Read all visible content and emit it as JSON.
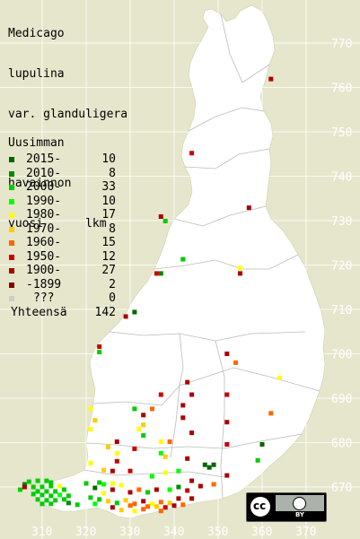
{
  "title_lines": [
    "Medicago",
    "lupulina",
    "var. glanduligera"
  ],
  "legend_heading": [
    "Uusimman",
    "havainnon",
    "vuosi      lkm"
  ],
  "legend": [
    {
      "label": "2015-",
      "count": "10",
      "color": "#006600"
    },
    {
      "label": "2010-",
      "count": "8",
      "color": "#008800"
    },
    {
      "label": "2000-",
      "count": "33",
      "color": "#00cc00"
    },
    {
      "label": "1990-",
      "count": "10",
      "color": "#00ff00"
    },
    {
      "label": "1980-",
      "count": "17",
      "color": "#ffff00"
    },
    {
      "label": "1970-",
      "count": "8",
      "color": "#ffcc00"
    },
    {
      "label": "1960-",
      "count": "15",
      "color": "#ff6600"
    },
    {
      "label": "1950-",
      "count": "12",
      "color": "#cc0000"
    },
    {
      "label": "1900-",
      "count": "27",
      "color": "#aa0000"
    },
    {
      "label": "-1899",
      "count": "2",
      "color": "#880000"
    },
    {
      "label": "???",
      "count": "0",
      "color": "#cccccc"
    }
  ],
  "total": {
    "label": "Yhteensä",
    "count": "142"
  },
  "grid": {
    "y_labels": [
      "770",
      "760",
      "750",
      "740",
      "730",
      "720",
      "710",
      "700",
      "690",
      "680",
      "670"
    ],
    "x_labels": [
      "310",
      "320",
      "330",
      "340",
      "350",
      "360",
      "370"
    ]
  },
  "colors": {
    "background": "#e6e6cc",
    "land": "#ffffff",
    "grid": "#ffffff",
    "grid_label": "#ffffff",
    "border": "#bbbbbb"
  },
  "license": {
    "cc": "cc",
    "by": "BY"
  },
  "observations": [
    {
      "e": 362,
      "n": 761.9,
      "c": "#aa0000"
    },
    {
      "e": 344,
      "n": 745.2,
      "c": "#cc0000"
    },
    {
      "e": 357,
      "n": 732.9,
      "c": "#aa0000"
    },
    {
      "e": 337,
      "n": 730.9,
      "c": "#aa0000"
    },
    {
      "e": 338,
      "n": 729.9,
      "c": "#00cc00"
    },
    {
      "e": 342,
      "n": 721.3,
      "c": "#00cc00"
    },
    {
      "e": 355,
      "n": 719.3,
      "c": "#ffff00"
    },
    {
      "e": 355,
      "n": 718.1,
      "c": "#aa0000"
    },
    {
      "e": 337,
      "n": 718.1,
      "c": "#008800"
    },
    {
      "e": 336,
      "n": 718.1,
      "c": "#cc0000"
    },
    {
      "e": 331,
      "n": 709.4,
      "c": "#006600"
    },
    {
      "e": 329,
      "n": 708.4,
      "c": "#aa0000"
    },
    {
      "e": 323,
      "n": 701.6,
      "c": "#cc0000"
    },
    {
      "e": 323,
      "n": 700.4,
      "c": "#00cc00"
    },
    {
      "e": 352,
      "n": 700.0,
      "c": "#aa0000"
    },
    {
      "e": 354,
      "n": 698.0,
      "c": "#ff6600"
    },
    {
      "e": 343,
      "n": 693.6,
      "c": "#aa0000"
    },
    {
      "e": 364,
      "n": 694.6,
      "c": "#ffff00"
    },
    {
      "e": 337,
      "n": 690.8,
      "c": "#cc0000"
    },
    {
      "e": 344,
      "n": 690.8,
      "c": "#aa0000"
    },
    {
      "e": 352,
      "n": 690.8,
      "c": "#cc0000"
    },
    {
      "e": 342,
      "n": 688.4,
      "c": "#aa0000"
    },
    {
      "e": 335,
      "n": 687.6,
      "c": "#ff6600"
    },
    {
      "e": 331,
      "n": 687.6,
      "c": "#00cc00"
    },
    {
      "e": 321,
      "n": 687.6,
      "c": "#ffff00"
    },
    {
      "e": 333,
      "n": 686.2,
      "c": "#aa0000"
    },
    {
      "e": 342,
      "n": 685.6,
      "c": "#aa0000"
    },
    {
      "e": 362,
      "n": 686.6,
      "c": "#ff6600"
    },
    {
      "e": 322,
      "n": 685.0,
      "c": "#ffcc00"
    },
    {
      "e": 352,
      "n": 684.6,
      "c": "#aa0000"
    },
    {
      "e": 333,
      "n": 684.0,
      "c": "#ffcc00"
    },
    {
      "e": 321,
      "n": 683.0,
      "c": "#ffff00"
    },
    {
      "e": 332,
      "n": 683.0,
      "c": "#ffff00"
    },
    {
      "e": 344,
      "n": 682.2,
      "c": "#aa0000"
    },
    {
      "e": 333,
      "n": 681.6,
      "c": "#00cc00"
    },
    {
      "e": 327,
      "n": 680.2,
      "c": "#aa0000"
    },
    {
      "e": 337,
      "n": 680.2,
      "c": "#ffff00"
    },
    {
      "e": 339,
      "n": 680.2,
      "c": "#ff6600"
    },
    {
      "e": 352,
      "n": 679.6,
      "c": "#cc0000"
    },
    {
      "e": 360,
      "n": 679.6,
      "c": "#006600"
    },
    {
      "e": 325,
      "n": 679.0,
      "c": "#ffcc00"
    },
    {
      "e": 331,
      "n": 678.6,
      "c": "#cc0000"
    },
    {
      "e": 327,
      "n": 677.6,
      "c": "#ffff00"
    },
    {
      "e": 337,
      "n": 677.6,
      "c": "#00ff00"
    },
    {
      "e": 338,
      "n": 676.8,
      "c": "#ffcc00"
    },
    {
      "e": 343,
      "n": 676.4,
      "c": "#aa0000"
    },
    {
      "e": 321,
      "n": 675.4,
      "c": "#ffff00"
    },
    {
      "e": 327,
      "n": 675.8,
      "c": "#cc0000"
    },
    {
      "e": 359,
      "n": 676.0,
      "c": "#00cc00"
    },
    {
      "e": 347,
      "n": 675.0,
      "c": "#006600"
    },
    {
      "e": 349,
      "n": 675.0,
      "c": "#006600"
    },
    {
      "e": 348,
      "n": 674.4,
      "c": "#006600"
    },
    {
      "e": 341,
      "n": 673.6,
      "c": "#00ff00"
    },
    {
      "e": 324,
      "n": 673.8,
      "c": "#ffcc00"
    },
    {
      "e": 326,
      "n": 673.6,
      "c": "#aa0000"
    },
    {
      "e": 330,
      "n": 673.6,
      "c": "#cc0000"
    },
    {
      "e": 338,
      "n": 673.2,
      "c": "#ffff00"
    },
    {
      "e": 335,
      "n": 672.4,
      "c": "#00ff00"
    },
    {
      "e": 352,
      "n": 672.6,
      "c": "#aa0000"
    },
    {
      "e": 344,
      "n": 671.4,
      "c": "#aa0000"
    },
    {
      "e": 323,
      "n": 671.0,
      "c": "#00cc00"
    },
    {
      "e": 324,
      "n": 670.6,
      "c": "#00ff00"
    },
    {
      "e": 326,
      "n": 670.8,
      "c": "#ffff00"
    },
    {
      "e": 320,
      "n": 670.8,
      "c": "#00cc00"
    },
    {
      "e": 306,
      "n": 670.6,
      "c": "#008800"
    },
    {
      "e": 307,
      "n": 671.2,
      "c": "#00cc00"
    },
    {
      "e": 309,
      "n": 671.4,
      "c": "#00cc00"
    },
    {
      "e": 311,
      "n": 671.4,
      "c": "#00cc00"
    },
    {
      "e": 312,
      "n": 671.0,
      "c": "#00cc00"
    },
    {
      "e": 306,
      "n": 670.0,
      "c": "#aa0000"
    },
    {
      "e": 308,
      "n": 670.0,
      "c": "#00cc00"
    },
    {
      "e": 310,
      "n": 670.0,
      "c": "#00cc00"
    },
    {
      "e": 312,
      "n": 670.2,
      "c": "#00cc00"
    },
    {
      "e": 314,
      "n": 670.2,
      "c": "#ffff00"
    },
    {
      "e": 305,
      "n": 669.4,
      "c": "#00cc00"
    },
    {
      "e": 309,
      "n": 669.0,
      "c": "#00cc00"
    },
    {
      "e": 311,
      "n": 669.0,
      "c": "#00cc00"
    },
    {
      "e": 313,
      "n": 669.0,
      "c": "#00cc00"
    },
    {
      "e": 315,
      "n": 669.4,
      "c": "#00cc00"
    },
    {
      "e": 308,
      "n": 668.4,
      "c": "#00cc00"
    },
    {
      "e": 310,
      "n": 668.2,
      "c": "#00cc00"
    },
    {
      "e": 312,
      "n": 668.0,
      "c": "#00cc00"
    },
    {
      "e": 314,
      "n": 668.2,
      "c": "#00ff00"
    },
    {
      "e": 316,
      "n": 668.0,
      "c": "#00cc00"
    },
    {
      "e": 309,
      "n": 667.2,
      "c": "#00cc00"
    },
    {
      "e": 311,
      "n": 667.0,
      "c": "#00cc00"
    },
    {
      "e": 313,
      "n": 667.0,
      "c": "#00cc00"
    },
    {
      "e": 315,
      "n": 667.2,
      "c": "#00cc00"
    },
    {
      "e": 310,
      "n": 666.2,
      "c": "#00cc00"
    },
    {
      "e": 312,
      "n": 666.2,
      "c": "#00cc00"
    },
    {
      "e": 316,
      "n": 666.4,
      "c": "#008800"
    },
    {
      "e": 318,
      "n": 666.0,
      "c": "#00cc00"
    },
    {
      "e": 322,
      "n": 669.8,
      "c": "#006600"
    },
    {
      "e": 324,
      "n": 668.6,
      "c": "#ffff00"
    },
    {
      "e": 326,
      "n": 669.4,
      "c": "#aa0000"
    },
    {
      "e": 328,
      "n": 670.4,
      "c": "#ffff00"
    },
    {
      "e": 330,
      "n": 668.8,
      "c": "#aa0000"
    },
    {
      "e": 332,
      "n": 669.4,
      "c": "#ff6600"
    },
    {
      "e": 334,
      "n": 668.8,
      "c": "#00cc00"
    },
    {
      "e": 336,
      "n": 669.4,
      "c": "#aa0000"
    },
    {
      "e": 339,
      "n": 669.4,
      "c": "#00ff00"
    },
    {
      "e": 341,
      "n": 670.0,
      "c": "#008800"
    },
    {
      "e": 343,
      "n": 669.2,
      "c": "#cc0000"
    },
    {
      "e": 346,
      "n": 670.2,
      "c": "#aa0000"
    },
    {
      "e": 349,
      "n": 670.6,
      "c": "#ff6600"
    },
    {
      "e": 321,
      "n": 667.6,
      "c": "#00cc00"
    },
    {
      "e": 325,
      "n": 666.8,
      "c": "#ffcc00"
    },
    {
      "e": 327,
      "n": 666.4,
      "c": "#00cc00"
    },
    {
      "e": 329,
      "n": 667.0,
      "c": "#ffcc00"
    },
    {
      "e": 331,
      "n": 666.2,
      "c": "#ff6600"
    },
    {
      "e": 333,
      "n": 666.8,
      "c": "#aa0000"
    },
    {
      "e": 335,
      "n": 666.2,
      "c": "#ffff00"
    },
    {
      "e": 337,
      "n": 666.6,
      "c": "#ff6600"
    },
    {
      "e": 339,
      "n": 666.4,
      "c": "#ffcc00"
    },
    {
      "e": 341,
      "n": 667.4,
      "c": "#aa0000"
    },
    {
      "e": 326,
      "n": 665.4,
      "c": "#aa0000"
    },
    {
      "e": 330,
      "n": 665.8,
      "c": "#ff6600"
    },
    {
      "e": 334,
      "n": 665.6,
      "c": "#ff6600"
    },
    {
      "e": 336,
      "n": 665.6,
      "c": "#ffcc00"
    },
    {
      "e": 338,
      "n": 665.4,
      "c": "#cc0000"
    },
    {
      "e": 340,
      "n": 665.8,
      "c": "#aa0000"
    },
    {
      "e": 342,
      "n": 666.0,
      "c": "#ff6600"
    },
    {
      "e": 344,
      "n": 667.4,
      "c": "#aa0000"
    },
    {
      "e": 328,
      "n": 664.8,
      "c": "#ffcc00"
    },
    {
      "e": 331,
      "n": 664.6,
      "c": "#ffff00"
    },
    {
      "e": 333,
      "n": 665.0,
      "c": "#ff6600"
    },
    {
      "e": 337,
      "n": 664.6,
      "c": "#ff6600"
    },
    {
      "e": 322,
      "n": 666.2,
      "c": "#00ff00"
    },
    {
      "e": 323,
      "n": 667.2,
      "c": "#00cc00"
    }
  ]
}
